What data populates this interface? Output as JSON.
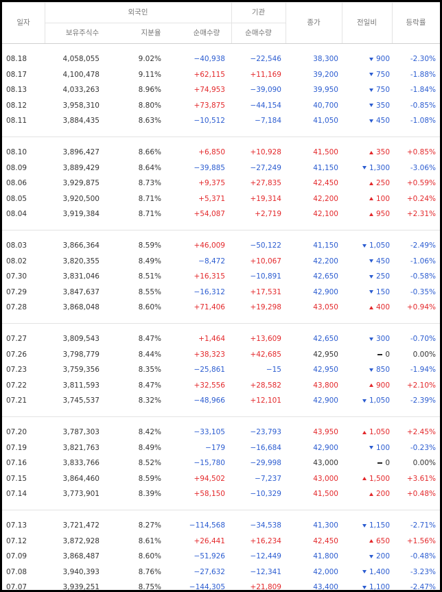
{
  "header": {
    "date": "일자",
    "foreign": "외국인",
    "institution": "기관",
    "close": "종가",
    "change": "전일비",
    "rate": "등락률",
    "holdings": "보유주식수",
    "ratio": "지분율",
    "foreign_net": "순매수량",
    "institution_net": "순매수량"
  },
  "groups": [
    [
      [
        "08.18",
        "4,058,055",
        "9.02%",
        "−40,938",
        "−22,546",
        "38,300",
        "900",
        "-2.30%"
      ],
      [
        "08.17",
        "4,100,478",
        "9.11%",
        "+62,115",
        "+11,169",
        "39,200",
        "750",
        "-1.88%"
      ],
      [
        "08.13",
        "4,033,263",
        "8.96%",
        "+74,953",
        "−39,090",
        "39,950",
        "750",
        "-1.84%"
      ],
      [
        "08.12",
        "3,958,310",
        "8.80%",
        "+73,875",
        "−44,154",
        "40,700",
        "350",
        "-0.85%"
      ],
      [
        "08.11",
        "3,884,435",
        "8.63%",
        "−10,512",
        "−7,184",
        "41,050",
        "450",
        "-1.08%"
      ]
    ],
    [
      [
        "08.10",
        "3,896,427",
        "8.66%",
        "+6,850",
        "+10,928",
        "41,500",
        "350",
        "+0.85%"
      ],
      [
        "08.09",
        "3,889,429",
        "8.64%",
        "−39,885",
        "−27,249",
        "41,150",
        "1,300",
        "-3.06%"
      ],
      [
        "08.06",
        "3,929,875",
        "8.73%",
        "+9,375",
        "+27,835",
        "42,450",
        "250",
        "+0.59%"
      ],
      [
        "08.05",
        "3,920,500",
        "8.71%",
        "+5,371",
        "+19,314",
        "42,200",
        "100",
        "+0.24%"
      ],
      [
        "08.04",
        "3,919,384",
        "8.71%",
        "+54,087",
        "+2,719",
        "42,100",
        "950",
        "+2.31%"
      ]
    ],
    [
      [
        "08.03",
        "3,866,364",
        "8.59%",
        "+46,009",
        "−50,122",
        "41,150",
        "1,050",
        "-2.49%"
      ],
      [
        "08.02",
        "3,820,355",
        "8.49%",
        "−8,472",
        "+10,067",
        "42,200",
        "450",
        "-1.06%"
      ],
      [
        "07.30",
        "3,831,046",
        "8.51%",
        "+16,315",
        "−10,891",
        "42,650",
        "250",
        "-0.58%"
      ],
      [
        "07.29",
        "3,847,637",
        "8.55%",
        "−16,312",
        "+17,531",
        "42,900",
        "150",
        "-0.35%"
      ],
      [
        "07.28",
        "3,868,048",
        "8.60%",
        "+71,406",
        "+19,298",
        "43,050",
        "400",
        "+0.94%"
      ]
    ],
    [
      [
        "07.27",
        "3,809,543",
        "8.47%",
        "+1,464",
        "+13,609",
        "42,650",
        "300",
        "-0.70%"
      ],
      [
        "07.26",
        "3,798,779",
        "8.44%",
        "+38,323",
        "+42,685",
        "42,950",
        "0",
        "0.00%"
      ],
      [
        "07.23",
        "3,759,356",
        "8.35%",
        "−25,861",
        "−15",
        "42,950",
        "850",
        "-1.94%"
      ],
      [
        "07.22",
        "3,811,593",
        "8.47%",
        "+32,556",
        "+28,582",
        "43,800",
        "900",
        "+2.10%"
      ],
      [
        "07.21",
        "3,745,537",
        "8.32%",
        "−48,966",
        "+12,101",
        "42,900",
        "1,050",
        "-2.39%"
      ]
    ],
    [
      [
        "07.20",
        "3,787,303",
        "8.42%",
        "−33,105",
        "−23,793",
        "43,950",
        "1,050",
        "+2.45%"
      ],
      [
        "07.19",
        "3,821,763",
        "8.49%",
        "−179",
        "−16,684",
        "42,900",
        "100",
        "-0.23%"
      ],
      [
        "07.16",
        "3,833,766",
        "8.52%",
        "−15,780",
        "−29,998",
        "43,000",
        "0",
        "0.00%"
      ],
      [
        "07.15",
        "3,864,460",
        "8.59%",
        "+94,502",
        "−7,237",
        "43,000",
        "1,500",
        "+3.61%"
      ],
      [
        "07.14",
        "3,773,901",
        "8.39%",
        "+58,150",
        "−10,329",
        "41,500",
        "200",
        "+0.48%"
      ]
    ],
    [
      [
        "07.13",
        "3,721,472",
        "8.27%",
        "−114,568",
        "−34,538",
        "41,300",
        "1,150",
        "-2.71%"
      ],
      [
        "07.12",
        "3,872,928",
        "8.61%",
        "+26,441",
        "+16,234",
        "42,450",
        "650",
        "+1.56%"
      ],
      [
        "07.09",
        "3,868,487",
        "8.60%",
        "−51,926",
        "−12,449",
        "41,800",
        "200",
        "-0.48%"
      ],
      [
        "07.08",
        "3,940,393",
        "8.76%",
        "−27,632",
        "−12,341",
        "42,000",
        "1,400",
        "-3.23%"
      ],
      [
        "07.07",
        "3,939,251",
        "8.75%",
        "−144,305",
        "+21,809",
        "43,400",
        "1,100",
        "-2.47%"
      ]
    ]
  ]
}
